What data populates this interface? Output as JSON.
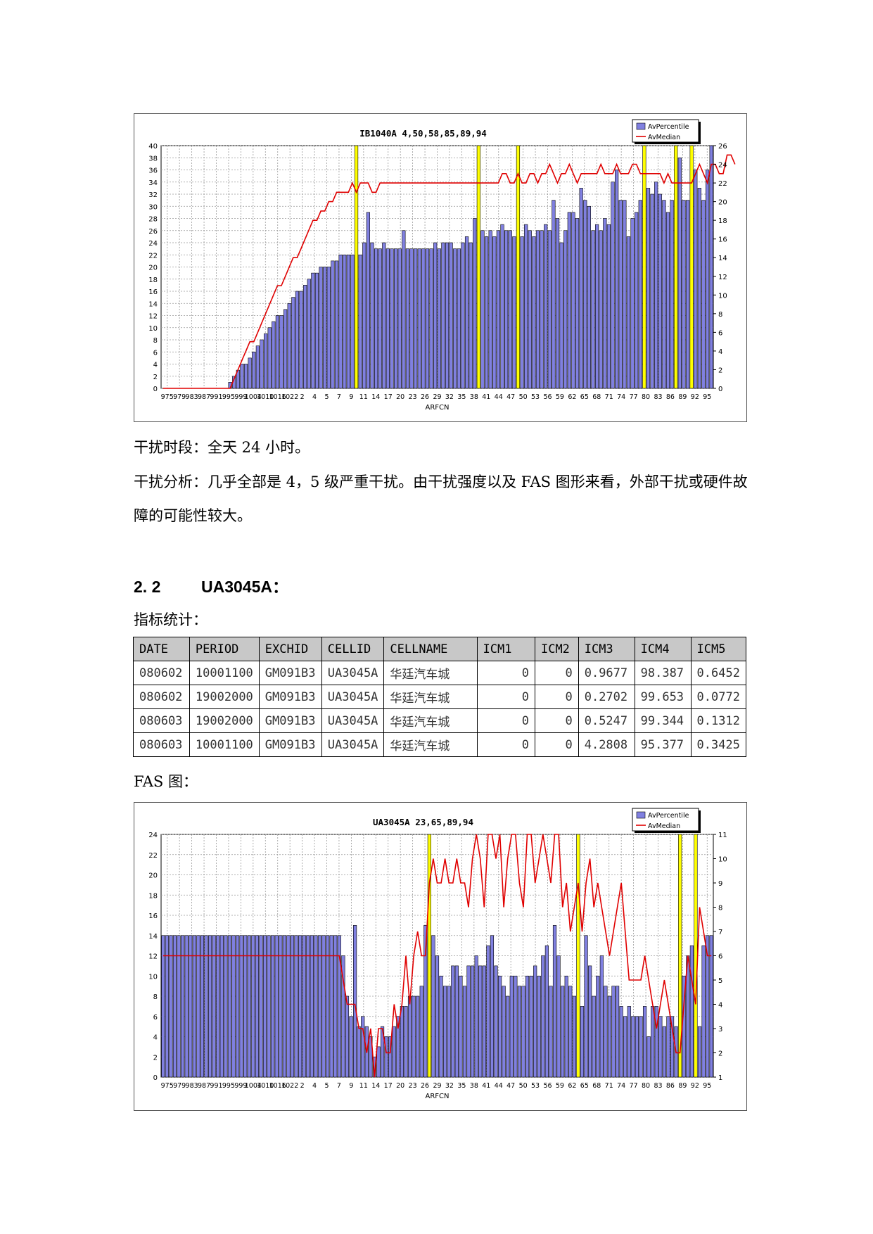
{
  "charts": [
    {
      "type": "bar",
      "title": "IB1040A 4,50,58,85,89,94",
      "xlabel": "ARFCN",
      "legend": [
        "AvPercentile",
        "AvMedian"
      ],
      "legend_position": "top-right",
      "left_axis": {
        "min": 0,
        "max": 40,
        "step": 2
      },
      "right_axis": {
        "min": 0,
        "max": 26,
        "step": 2
      },
      "x_tick_labels": [
        "975",
        "979",
        "983",
        "987",
        "991",
        "995",
        "999",
        "1004",
        "1010",
        "1016",
        "1022",
        "2",
        "4",
        "5",
        "7",
        "9",
        "11",
        "14",
        "17",
        "20",
        "23",
        "26",
        "29",
        "32",
        "35",
        "38",
        "41",
        "44",
        "47",
        "50",
        "53",
        "56",
        "59",
        "62",
        "65",
        "68",
        "71",
        "74",
        "77",
        "80",
        "83",
        "86",
        "89",
        "92",
        "95"
      ],
      "colors": {
        "bar": "#8080e0",
        "highlight": "#ffff00",
        "line": "#e00000"
      },
      "highlight_indices": [
        49,
        80,
        90,
        122,
        130,
        134
      ],
      "av_percentile": [
        0,
        0,
        0,
        0,
        0,
        0,
        0,
        0,
        0,
        0,
        0,
        0,
        0,
        0,
        0,
        0,
        0,
        1,
        2,
        3,
        4,
        4,
        5,
        6,
        7,
        8,
        9,
        10,
        11,
        12,
        12,
        13,
        14,
        15,
        16,
        16,
        17,
        18,
        19,
        19,
        20,
        20,
        20,
        21,
        21,
        22,
        22,
        22,
        22,
        22,
        22,
        24,
        29,
        24,
        23,
        23,
        24,
        23,
        23,
        23,
        23,
        26,
        23,
        23,
        23,
        23,
        23,
        23,
        23,
        24,
        23,
        24,
        24,
        24,
        23,
        23,
        24,
        25,
        24,
        28,
        23,
        26,
        25,
        26,
        25,
        26,
        27,
        26,
        26,
        25,
        26,
        25,
        27,
        26,
        25,
        26,
        26,
        27,
        26,
        31,
        28,
        24,
        26,
        29,
        29,
        28,
        33,
        31,
        30,
        26,
        27,
        26,
        28,
        27,
        34,
        36,
        31,
        31,
        25,
        28,
        29,
        31,
        27,
        33,
        32,
        34,
        32,
        31,
        29,
        31,
        36,
        38,
        31,
        31,
        38,
        36,
        33,
        31,
        36,
        40
      ],
      "av_median": [
        0,
        0,
        0,
        0,
        0,
        0,
        0,
        0,
        0,
        0,
        0,
        0,
        0,
        0,
        0,
        0,
        0,
        0,
        1,
        2,
        3,
        4,
        5,
        5,
        6,
        7,
        8,
        9,
        10,
        11,
        11,
        12,
        13,
        14,
        14,
        15,
        16,
        17,
        18,
        18,
        19,
        19,
        20,
        20,
        21,
        21,
        21,
        21,
        22,
        21,
        22,
        22,
        22,
        21,
        21,
        22,
        22,
        22,
        22,
        22,
        22,
        22,
        22,
        22,
        22,
        22,
        22,
        22,
        22,
        22,
        22,
        22,
        22,
        22,
        22,
        22,
        22,
        22,
        22,
        22,
        22,
        22,
        22,
        22,
        22,
        22,
        23,
        23,
        22,
        22,
        23,
        22,
        22,
        23,
        23,
        22,
        23,
        23,
        24,
        23,
        22,
        23,
        23,
        24,
        23,
        22,
        23,
        23,
        23,
        23,
        23,
        24,
        23,
        23,
        23,
        24,
        23,
        23,
        23,
        24,
        24,
        23,
        23,
        23,
        23,
        23,
        23,
        22,
        23,
        22,
        22,
        22,
        22,
        22,
        22,
        23,
        24,
        23,
        22,
        24,
        24,
        23,
        23,
        25,
        25,
        24
      ]
    },
    {
      "type": "bar",
      "title": "UA3045A 23,65,89,94",
      "xlabel": "ARFCN",
      "legend": [
        "AvPercentile",
        "AvMedian"
      ],
      "legend_position": "top-right",
      "left_axis": {
        "min": 0,
        "max": 24,
        "step": 2
      },
      "right_axis": {
        "min": 1,
        "max": 11,
        "step": 1
      },
      "x_tick_labels": [
        "975",
        "979",
        "983",
        "987",
        "991",
        "995",
        "999",
        "1004",
        "1010",
        "1016",
        "1022",
        "2",
        "4",
        "5",
        "7",
        "9",
        "11",
        "14",
        "17",
        "20",
        "23",
        "26",
        "29",
        "32",
        "35",
        "38",
        "41",
        "44",
        "47",
        "50",
        "53",
        "56",
        "59",
        "62",
        "65",
        "68",
        "71",
        "74",
        "77",
        "80",
        "83",
        "86",
        "89",
        "92",
        "95"
      ],
      "colors": {
        "bar": "#8080e0",
        "highlight": "#ffff00",
        "line": "#e00000"
      },
      "highlight_indices": [
        68,
        106,
        132,
        136
      ],
      "av_percentile": [
        14,
        14,
        14,
        14,
        14,
        14,
        14,
        14,
        14,
        14,
        14,
        14,
        14,
        14,
        14,
        14,
        14,
        14,
        14,
        14,
        14,
        14,
        14,
        14,
        14,
        14,
        14,
        14,
        14,
        14,
        14,
        14,
        14,
        14,
        14,
        14,
        14,
        14,
        14,
        14,
        14,
        14,
        14,
        14,
        14,
        14,
        12,
        8,
        6,
        15,
        5,
        6,
        5,
        4,
        2,
        3,
        5,
        4,
        4,
        5,
        6,
        7,
        7,
        8,
        8,
        8,
        9,
        15,
        16,
        14,
        12,
        10,
        9,
        9,
        11,
        11,
        10,
        9,
        11,
        11,
        12,
        11,
        11,
        13,
        14,
        11,
        10,
        9,
        8,
        10,
        10,
        9,
        9,
        10,
        10,
        11,
        10,
        12,
        13,
        9,
        15,
        12,
        9,
        10,
        9,
        8,
        8,
        7,
        14,
        11,
        8,
        10,
        12,
        9,
        8,
        9,
        9,
        7,
        6,
        7,
        6,
        6,
        6,
        7,
        4,
        7,
        7,
        6,
        5,
        6,
        6,
        5,
        2,
        10,
        12,
        13,
        8,
        5,
        13,
        14,
        14
      ],
      "av_median": [
        6,
        6,
        6,
        6,
        6,
        6,
        6,
        6,
        6,
        6,
        6,
        6,
        6,
        6,
        6,
        6,
        6,
        6,
        6,
        6,
        6,
        6,
        6,
        6,
        6,
        6,
        6,
        6,
        6,
        6,
        6,
        6,
        6,
        6,
        6,
        6,
        6,
        6,
        6,
        6,
        6,
        6,
        6,
        6,
        6,
        6,
        5,
        4,
        4,
        4,
        3,
        3,
        2,
        3,
        1,
        3,
        3,
        2,
        2,
        4,
        3,
        4,
        6,
        4,
        6,
        7,
        6,
        6,
        9,
        10,
        9,
        9,
        10,
        9,
        9,
        10,
        9,
        9,
        8,
        10,
        11,
        10,
        8,
        11,
        11,
        10,
        11,
        8,
        10,
        11,
        11,
        9,
        8,
        11,
        11,
        9,
        10,
        11,
        10,
        9,
        11,
        11,
        8,
        9,
        7,
        8,
        9,
        7,
        9,
        10,
        8,
        9,
        8,
        7,
        6,
        7,
        8,
        9,
        7,
        5,
        5,
        5,
        5,
        6,
        5,
        4,
        3,
        4,
        5,
        4,
        3,
        2,
        2,
        4,
        6,
        5,
        4,
        8,
        7,
        6,
        6
      ]
    }
  ],
  "text": {
    "period": "干扰时段：全天 24 小时。",
    "analysis": "干扰分析：几乎全部是 4，5 级严重干扰。由干扰强度以及 FAS 图形来看，外部干扰或硬件故障的可能性较大。",
    "section_number": "2. 2",
    "section_title": "UA3045A：",
    "stats_label": "指标统计：",
    "fas_label": "FAS 图："
  },
  "table": {
    "headers": [
      "DATE",
      "PERIOD",
      "EXCHID",
      "CELLID",
      "CELLNAME",
      "ICM1",
      "ICM2",
      "ICM3",
      "ICM4",
      "ICM5"
    ],
    "rows": [
      [
        "080602",
        "10001100",
        "GM091B3",
        "UA3045A",
        "华廷汽车城",
        "0",
        "0",
        "0.9677",
        "98.387",
        "0.6452"
      ],
      [
        "080602",
        "19002000",
        "GM091B3",
        "UA3045A",
        "华廷汽车城",
        "0",
        "0",
        "0.2702",
        "99.653",
        "0.0772"
      ],
      [
        "080603",
        "19002000",
        "GM091B3",
        "UA3045A",
        "华廷汽车城",
        "0",
        "0",
        "0.5247",
        "99.344",
        "0.1312"
      ],
      [
        "080603",
        "10001100",
        "GM091B3",
        "UA3045A",
        "华廷汽车城",
        "0",
        "0",
        "4.2808",
        "95.377",
        "0.3425"
      ]
    ]
  }
}
